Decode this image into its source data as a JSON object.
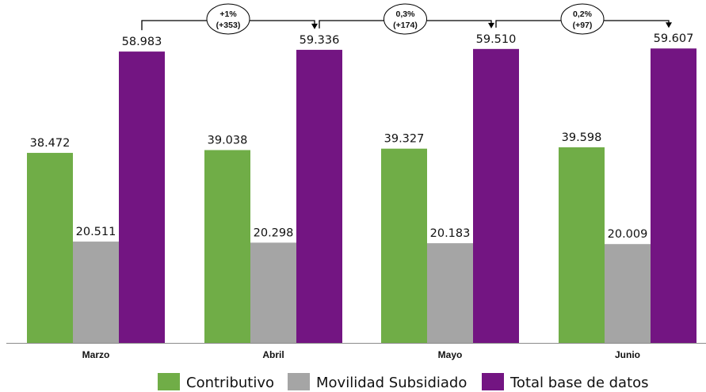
{
  "chart_data": {
    "type": "bar",
    "categories": [
      "Marzo",
      "Abril",
      "Mayo",
      "Junio"
    ],
    "series": [
      {
        "name": "Contributivo",
        "color": "#70ad47",
        "values": [
          38472,
          39038,
          39327,
          39598
        ],
        "labels": [
          "38.472",
          "39.038",
          "39.327",
          "39.598"
        ]
      },
      {
        "name": "Movilidad Subsidiado",
        "color": "#a5a5a5",
        "values": [
          20511,
          20298,
          20183,
          20009
        ],
        "labels": [
          "20.511",
          "20.298",
          "20.183",
          "20.009"
        ]
      },
      {
        "name": "Total base de datos",
        "color": "#731582",
        "values": [
          58983,
          59336,
          59510,
          59607
        ],
        "labels": [
          "58.983",
          "59.336",
          "59.510",
          "59.607"
        ]
      }
    ],
    "annotations": [
      {
        "from": "Marzo",
        "to": "Abril",
        "line1": "+1%",
        "line2": "(+353)"
      },
      {
        "from": "Abril",
        "to": "Mayo",
        "line1": "0,3%",
        "line2": "(+174)"
      },
      {
        "from": "Mayo",
        "to": "Junio",
        "line1": "0,2%",
        "line2": "(+97)"
      }
    ],
    "ylim": [
      0,
      70000
    ],
    "grid": false,
    "legend_position": "bottom",
    "title": "",
    "xlabel": "",
    "ylabel": ""
  }
}
